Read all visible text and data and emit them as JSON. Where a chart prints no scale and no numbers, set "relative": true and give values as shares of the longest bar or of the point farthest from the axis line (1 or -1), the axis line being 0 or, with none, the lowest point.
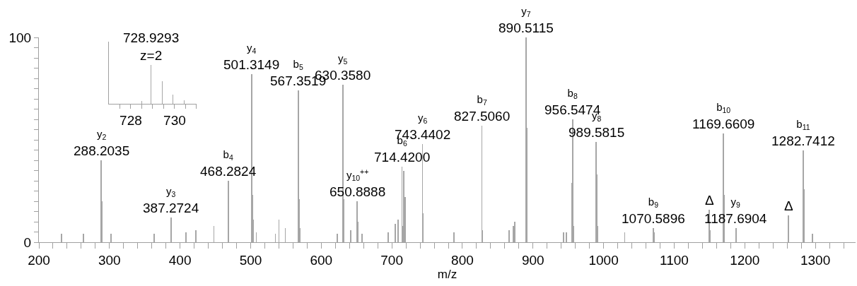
{
  "chart_data": [
    {
      "type": "bar",
      "xlabel": "m/z",
      "color": "#a6a6a6",
      "xlim": [
        200,
        1357
      ],
      "xticks": [
        200,
        {
          "value": 220,
          "label": null
        },
        {
          "value": 240,
          "label": null
        },
        {
          "value": 260,
          "label": null
        },
        {
          "value": 280,
          "label": null
        },
        300,
        {
          "value": 320,
          "label": null
        },
        {
          "value": 340,
          "label": null
        },
        {
          "value": 360,
          "label": null
        },
        {
          "value": 380,
          "label": null
        },
        400,
        {
          "value": 420,
          "label": null
        },
        {
          "value": 440,
          "label": null
        },
        {
          "value": 460,
          "label": null
        },
        {
          "value": 480,
          "label": null
        },
        500,
        {
          "value": 520,
          "label": null
        },
        {
          "value": 540,
          "label": null
        },
        {
          "value": 560,
          "label": null
        },
        {
          "value": 580,
          "label": null
        },
        600,
        {
          "value": 620,
          "label": null
        },
        {
          "value": 640,
          "label": null
        },
        {
          "value": 660,
          "label": null
        },
        {
          "value": 680,
          "label": null
        },
        700,
        {
          "value": 720,
          "label": null
        },
        {
          "value": 740,
          "label": null
        },
        {
          "value": 760,
          "label": null
        },
        {
          "value": 780,
          "label": null
        },
        800,
        {
          "value": 820,
          "label": null
        },
        {
          "value": 840,
          "label": null
        },
        {
          "value": 860,
          "label": null
        },
        {
          "value": 880,
          "label": null
        },
        900,
        {
          "value": 920,
          "label": null
        },
        {
          "value": 940,
          "label": null
        },
        {
          "value": 960,
          "label": null
        },
        {
          "value": 980,
          "label": null
        },
        1000,
        {
          "value": 1020,
          "label": null
        },
        {
          "value": 1040,
          "label": null
        },
        {
          "value": 1060,
          "label": null
        },
        {
          "value": 1080,
          "label": null
        },
        1100,
        {
          "value": 1120,
          "label": null
        },
        {
          "value": 1140,
          "label": null
        },
        {
          "value": 1160,
          "label": null
        },
        {
          "value": 1180,
          "label": null
        },
        1200,
        {
          "value": 1220,
          "label": null
        },
        {
          "value": 1240,
          "label": null
        },
        {
          "value": 1260,
          "label": null
        },
        {
          "value": 1280,
          "label": null
        },
        1300,
        {
          "value": 1320,
          "label": null
        },
        {
          "value": 1340,
          "label": null
        }
      ],
      "ylim": [
        0,
        100
      ],
      "yticks": [
        0,
        {
          "value": 5,
          "label": null
        },
        {
          "value": 10,
          "label": null
        },
        {
          "value": 15,
          "label": null
        },
        {
          "value": 20,
          "label": null
        },
        {
          "value": 25,
          "label": null
        },
        {
          "value": 30,
          "label": null
        },
        {
          "value": 35,
          "label": null
        },
        {
          "value": 40,
          "label": null
        },
        {
          "value": 45,
          "label": null
        },
        {
          "value": 50,
          "label": null
        },
        {
          "value": 55,
          "label": null
        },
        {
          "value": 60,
          "label": null
        },
        {
          "value": 65,
          "label": null
        },
        {
          "value": 70,
          "label": null
        },
        {
          "value": 75,
          "label": null
        },
        {
          "value": 80,
          "label": null
        },
        {
          "value": 85,
          "label": null
        },
        {
          "value": 90,
          "label": null
        },
        {
          "value": 95,
          "label": null
        },
        100
      ],
      "x": [
        232,
        263,
        288.2035,
        289.2,
        302,
        363,
        387.2724,
        408,
        422,
        448,
        468.2824,
        501.3149,
        502.3,
        503.3,
        508,
        535,
        540,
        549,
        567.3519,
        568.4,
        569.4,
        623,
        630.358,
        631.4,
        642,
        650.8888,
        651.4,
        658,
        695,
        705,
        709,
        714.42,
        715.4,
        717,
        719,
        743.4402,
        744.4,
        788,
        827.506,
        828.5,
        866,
        872,
        874,
        890.5115,
        891.5,
        943,
        947,
        955,
        956.5474,
        957.6,
        989.5815,
        990.6,
        991.6,
        1030,
        1070.5896,
        1072,
        1150,
        1151,
        1169.6609,
        1170.7,
        1187.6904,
        1262,
        1282.7412,
        1283.7,
        1296
      ],
      "values": [
        4,
        4,
        40,
        20,
        4,
        4,
        12,
        5,
        6,
        8,
        30,
        82,
        23,
        11,
        5,
        4,
        11,
        7,
        74,
        21,
        7,
        4,
        77,
        21,
        6,
        20,
        10,
        4,
        5,
        9,
        11,
        37,
        8,
        35,
        22,
        48,
        14,
        5,
        57,
        6,
        6,
        8,
        10,
        100,
        56,
        5,
        5,
        29,
        60,
        8,
        49,
        33,
        8,
        5,
        7,
        5,
        16,
        6,
        53,
        23,
        7,
        13,
        45,
        26,
        4
      ],
      "annotations": [
        {
          "text": "y$_{2}$\n288.2035",
          "x": 288.2035,
          "y": 40
        },
        {
          "text": "y$_{3}$\n387.2724",
          "x": 387.2724,
          "y": 12
        },
        {
          "text": "b$_{4}$\n468.2824",
          "x": 468.2824,
          "y": 30
        },
        {
          "text": "y$_{4}$\n501.3149",
          "x": 501.3149,
          "y": 82
        },
        {
          "text": "b$_{5}$\n567.3519",
          "x": 567.3519,
          "y": 74
        },
        {
          "text": "y$_{5}$\n630.3580",
          "x": 630.358,
          "y": 77
        },
        {
          "text": "y$_{10}$$^{++}$\n650.8888",
          "x": 650.8888,
          "y": 20
        },
        {
          "text": "b$_{6}$\n714.4200",
          "x": 714.42,
          "y": 37
        },
        {
          "text": "y$_{6}$\n743.4402",
          "x": 743.4402,
          "y": 48
        },
        {
          "text": "b$_{7}$\n827.5060",
          "x": 827.506,
          "y": 57
        },
        {
          "text": "y$_{7}$\n890.5115",
          "x": 890.5115,
          "y": 100
        },
        {
          "text": "b$_{8}$\n956.5474",
          "x": 956.5474,
          "y": 60
        },
        {
          "text": "y$_{8}$\n989.5815",
          "x": 989.5815,
          "y": 49
        },
        {
          "text": "b$_{9}$\n1070.5896",
          "x": 1070.5896,
          "y": 7
        },
        {
          "text": "Δ",
          "x": 1150,
          "y": 16
        },
        {
          "text": "b$_{10}$\n1169.6609",
          "x": 1169.6609,
          "y": 53
        },
        {
          "text": "y$_{9}$\n1187.6904",
          "x": 1187.6904,
          "y": 7
        },
        {
          "text": "Δ",
          "x": 1262,
          "y": 13
        },
        {
          "text": "b$_{11}$\n1282.7412",
          "x": 1282.7412,
          "y": 45
        }
      ]
    },
    {
      "type": "bar",
      "color": "#a6a6a6",
      "relative": true,
      "tick_labels": "x",
      "xlim": [
        727,
        731
      ],
      "xticks": [
        {
          "value": 727.5,
          "label": null
        },
        728,
        {
          "value": 728.5,
          "label": null
        },
        {
          "value": 729,
          "label": null
        },
        {
          "value": 729.5,
          "label": null
        },
        730,
        {
          "value": 730.5,
          "label": null
        },
        {
          "value": 731,
          "label": null
        }
      ],
      "x": [
        728.5,
        728.9293,
        729.43,
        729.93,
        730.43
      ],
      "values": [
        0.07,
        1,
        0.59,
        0.23,
        0.09
      ],
      "annotations": [
        {
          "text": "728.9293\nz=2",
          "x": 728.9293,
          "y": 1
        }
      ]
    }
  ]
}
